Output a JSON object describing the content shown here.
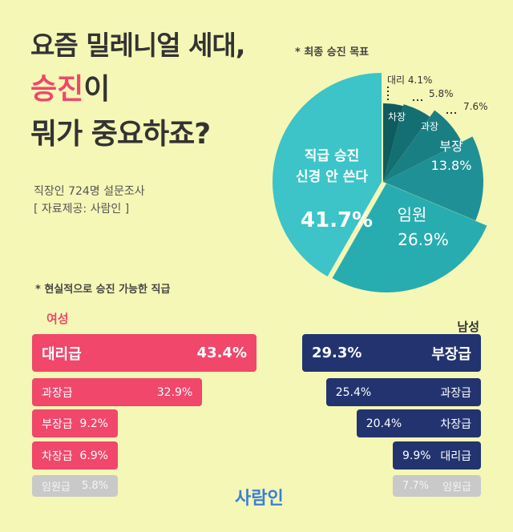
{
  "title": {
    "line1": "요즘 밀레니얼 세대,",
    "line2_highlight": "승진",
    "line2_rest": "이",
    "line3": "뭐가 중요하죠?"
  },
  "survey": {
    "line1": "직장인 724명 설문조사",
    "line2": "[ 자료제공: 사람인 ]"
  },
  "colors": {
    "background": "#f5f7b6",
    "female": "#f0476b",
    "male": "#223370",
    "minor": "#c9c9c9"
  },
  "chart_data": [
    {
      "type": "pie",
      "title": "* 최종 승진 목표",
      "slices": [
        {
          "label": "대리",
          "value": 4.1,
          "color": "#0e5c5f"
        },
        {
          "label": "차장",
          "value": 5.8,
          "color": "#146f72"
        },
        {
          "label": "과장",
          "value": 7.6,
          "color": "#1a7f83"
        },
        {
          "label": "부장",
          "value": 13.8,
          "color": "#1f9196"
        },
        {
          "label": "임원",
          "value": 26.9,
          "color": "#27adb0"
        },
        {
          "label": "직급 승진 신경 안 쓴다",
          "value": 41.7,
          "color": "#3cc4c8"
        }
      ]
    },
    {
      "type": "bar",
      "title": "* 현실적으로 승진 가능한 직급",
      "series": [
        {
          "name": "여성",
          "categories": [
            "대리급",
            "과장급",
            "부장급",
            "차장급",
            "임원급"
          ],
          "values": [
            43.4,
            32.9,
            9.2,
            6.9,
            5.8
          ]
        },
        {
          "name": "남성",
          "categories": [
            "부장급",
            "과장급",
            "차장급",
            "대리급",
            "임원급"
          ],
          "values": [
            29.3,
            25.4,
            20.4,
            9.9,
            7.7
          ]
        }
      ]
    }
  ],
  "pie_text": {
    "big_l1": "직급 승진",
    "big_l2": "신경 안 쓴다"
  },
  "logo": "사람인"
}
